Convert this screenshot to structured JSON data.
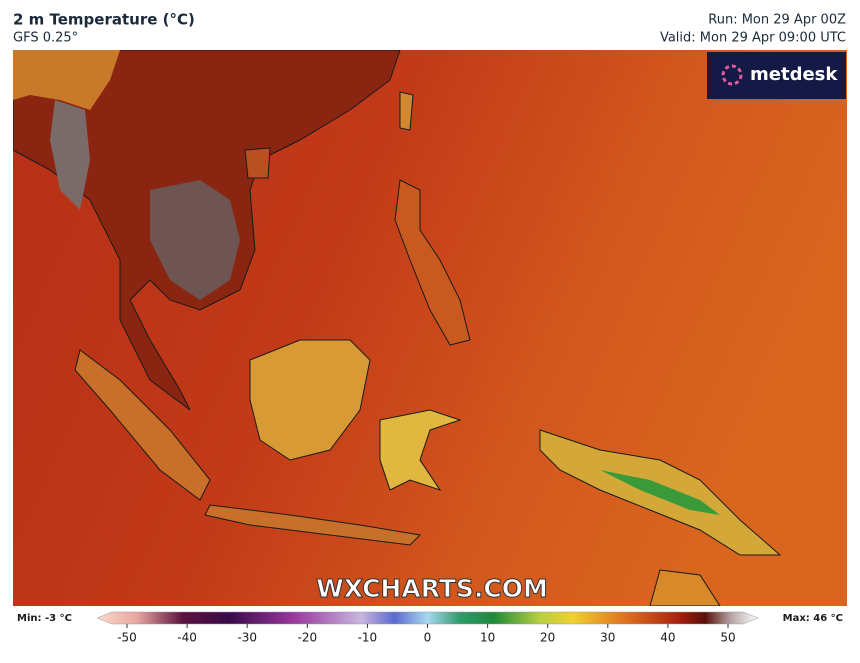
{
  "header": {
    "title": "2 m Temperature (°C)",
    "subtitle": "GFS 0.25°",
    "run": "Run: Mon 29 Apr 00Z",
    "valid": "Valid: Mon 29 Apr 09:00 UTC"
  },
  "logo": "metdesk",
  "watermark": "WXCHARTS.COM",
  "colorbar": {
    "min_label": "Min: -3 °C",
    "max_label": "Max: 46 °C",
    "range": [
      -50,
      50
    ],
    "ticks": [
      -50,
      -40,
      -30,
      -20,
      -10,
      0,
      10,
      20,
      30,
      40,
      50
    ]
  }
}
